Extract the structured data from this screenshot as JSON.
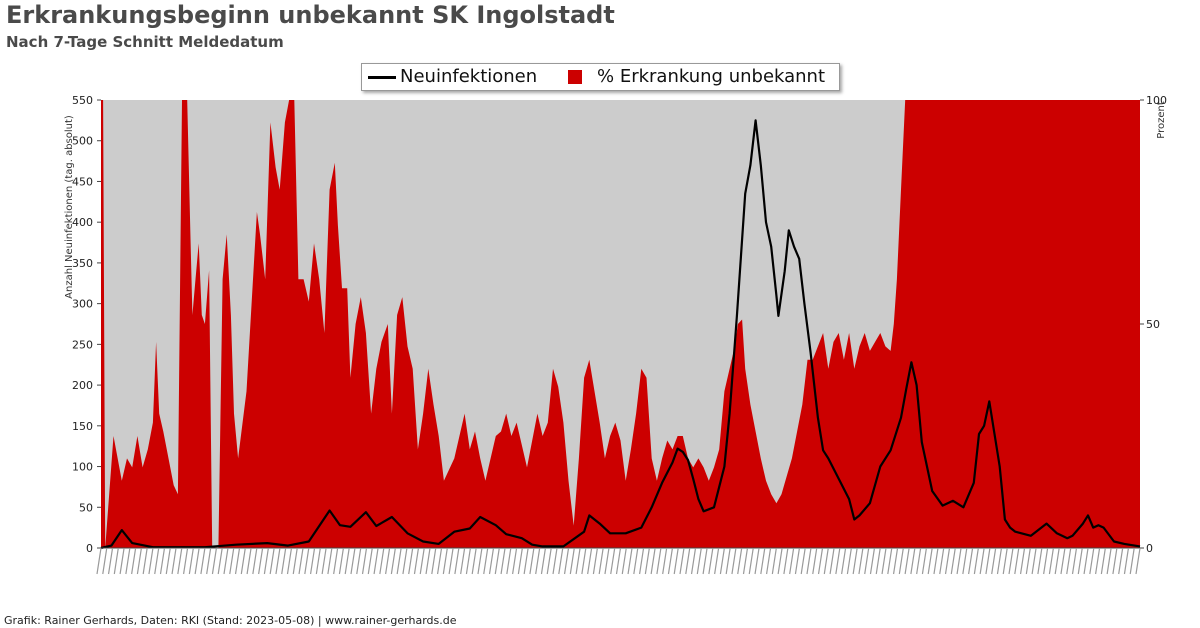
{
  "title": "Erkrankungsbeginn unbekannt SK Ingolstadt",
  "subtitle": "Nach 7-Tage Schnitt Meldedatum",
  "footer": "Grafik: Rainer Gerhards, Daten: RKI (Stand: 2023-05-08) | www.rainer-gerhards.de",
  "colors": {
    "area": "#cc0000",
    "line": "#000000",
    "plot_bg": "#cccccc"
  },
  "chart_data": {
    "type": "line+area",
    "legend": [
      "Neuinfektionen",
      "% Erkrankung unbekannt"
    ],
    "legend_position": "top-center",
    "ylabel_left": "Anzahl Neuinfektionen (tag. absolut)",
    "ylabel_right": "Prozent",
    "ylim_left": [
      0,
      550
    ],
    "ylim_right": [
      0,
      100
    ],
    "yticks_left": [
      0,
      50,
      100,
      150,
      200,
      250,
      300,
      350,
      400,
      450,
      500,
      550
    ],
    "yticks_right": [
      0,
      50,
      100
    ],
    "x_range": [
      "2020-03",
      "2023-05-06"
    ],
    "x_tick_labels_note": "daily date labels, overlapping and illegible",
    "series": [
      {
        "name": "Neuinfektionen",
        "axis": "left",
        "points": [
          [
            0,
            0
          ],
          [
            0.01,
            3
          ],
          [
            0.02,
            22
          ],
          [
            0.03,
            6
          ],
          [
            0.05,
            1
          ],
          [
            0.1,
            1
          ],
          [
            0.13,
            4
          ],
          [
            0.16,
            6
          ],
          [
            0.18,
            3
          ],
          [
            0.2,
            8
          ],
          [
            0.21,
            27
          ],
          [
            0.22,
            46
          ],
          [
            0.23,
            28
          ],
          [
            0.24,
            26
          ],
          [
            0.255,
            44
          ],
          [
            0.265,
            27
          ],
          [
            0.28,
            38
          ],
          [
            0.295,
            18
          ],
          [
            0.31,
            8
          ],
          [
            0.325,
            5
          ],
          [
            0.34,
            20
          ],
          [
            0.355,
            24
          ],
          [
            0.365,
            38
          ],
          [
            0.38,
            28
          ],
          [
            0.39,
            17
          ],
          [
            0.405,
            12
          ],
          [
            0.415,
            4
          ],
          [
            0.425,
            2
          ],
          [
            0.445,
            2
          ],
          [
            0.465,
            20
          ],
          [
            0.47,
            40
          ],
          [
            0.48,
            30
          ],
          [
            0.49,
            18
          ],
          [
            0.505,
            18
          ],
          [
            0.52,
            25
          ],
          [
            0.53,
            50
          ],
          [
            0.54,
            80
          ],
          [
            0.55,
            105
          ],
          [
            0.555,
            122
          ],
          [
            0.56,
            118
          ],
          [
            0.565,
            108
          ],
          [
            0.57,
            85
          ],
          [
            0.575,
            60
          ],
          [
            0.58,
            45
          ],
          [
            0.59,
            50
          ],
          [
            0.6,
            100
          ],
          [
            0.605,
            165
          ],
          [
            0.612,
            285
          ],
          [
            0.62,
            435
          ],
          [
            0.625,
            470
          ],
          [
            0.63,
            525
          ],
          [
            0.635,
            470
          ],
          [
            0.64,
            400
          ],
          [
            0.645,
            370
          ],
          [
            0.65,
            310
          ],
          [
            0.652,
            285
          ],
          [
            0.658,
            340
          ],
          [
            0.662,
            390
          ],
          [
            0.667,
            370
          ],
          [
            0.672,
            355
          ],
          [
            0.677,
            300
          ],
          [
            0.683,
            240
          ],
          [
            0.69,
            160
          ],
          [
            0.695,
            120
          ],
          [
            0.7,
            110
          ],
          [
            0.71,
            85
          ],
          [
            0.72,
            60
          ],
          [
            0.725,
            35
          ],
          [
            0.73,
            40
          ],
          [
            0.74,
            55
          ],
          [
            0.75,
            100
          ],
          [
            0.76,
            120
          ],
          [
            0.77,
            160
          ],
          [
            0.775,
            195
          ],
          [
            0.78,
            228
          ],
          [
            0.785,
            200
          ],
          [
            0.79,
            130
          ],
          [
            0.8,
            70
          ],
          [
            0.81,
            52
          ],
          [
            0.82,
            58
          ],
          [
            0.83,
            50
          ],
          [
            0.84,
            80
          ],
          [
            0.845,
            140
          ],
          [
            0.85,
            150
          ],
          [
            0.855,
            180
          ],
          [
            0.86,
            140
          ],
          [
            0.865,
            100
          ],
          [
            0.87,
            35
          ],
          [
            0.875,
            25
          ],
          [
            0.88,
            20
          ],
          [
            0.895,
            15
          ],
          [
            0.91,
            30
          ],
          [
            0.92,
            18
          ],
          [
            0.93,
            12
          ],
          [
            0.935,
            15
          ],
          [
            0.945,
            30
          ],
          [
            0.95,
            40
          ],
          [
            0.955,
            25
          ],
          [
            0.96,
            28
          ],
          [
            0.965,
            25
          ],
          [
            0.975,
            8
          ],
          [
            0.985,
            5
          ],
          [
            1,
            2
          ]
        ]
      },
      {
        "name": "% Erkrankung unbekannt",
        "axis": "right",
        "points": [
          [
            0,
            100
          ],
          [
            0.002,
            100
          ],
          [
            0.004,
            0
          ],
          [
            0.012,
            25
          ],
          [
            0.02,
            15
          ],
          [
            0.025,
            20
          ],
          [
            0.03,
            18
          ],
          [
            0.035,
            25
          ],
          [
            0.04,
            18
          ],
          [
            0.045,
            22
          ],
          [
            0.05,
            28
          ],
          [
            0.053,
            46
          ],
          [
            0.056,
            30
          ],
          [
            0.06,
            26
          ],
          [
            0.065,
            20
          ],
          [
            0.07,
            14
          ],
          [
            0.074,
            12
          ],
          [
            0.078,
            100
          ],
          [
            0.083,
            100
          ],
          [
            0.086,
            70
          ],
          [
            0.088,
            52
          ],
          [
            0.091,
            60
          ],
          [
            0.094,
            68
          ],
          [
            0.097,
            52
          ],
          [
            0.1,
            50
          ],
          [
            0.104,
            62
          ],
          [
            0.107,
            0
          ],
          [
            0.113,
            0
          ],
          [
            0.117,
            60
          ],
          [
            0.121,
            70
          ],
          [
            0.125,
            52
          ],
          [
            0.128,
            30
          ],
          [
            0.132,
            20
          ],
          [
            0.14,
            35
          ],
          [
            0.145,
            55
          ],
          [
            0.15,
            75
          ],
          [
            0.153,
            70
          ],
          [
            0.158,
            60
          ],
          [
            0.163,
            95
          ],
          [
            0.168,
            85
          ],
          [
            0.172,
            80
          ],
          [
            0.177,
            95
          ],
          [
            0.181,
            100
          ],
          [
            0.186,
            100
          ],
          [
            0.19,
            60
          ],
          [
            0.195,
            60
          ],
          [
            0.2,
            55
          ],
          [
            0.205,
            68
          ],
          [
            0.21,
            60
          ],
          [
            0.215,
            48
          ],
          [
            0.22,
            80
          ],
          [
            0.225,
            86
          ],
          [
            0.228,
            72
          ],
          [
            0.232,
            58
          ],
          [
            0.237,
            58
          ],
          [
            0.24,
            38
          ],
          [
            0.245,
            50
          ],
          [
            0.25,
            56
          ],
          [
            0.255,
            48
          ],
          [
            0.26,
            30
          ],
          [
            0.265,
            40
          ],
          [
            0.27,
            46
          ],
          [
            0.276,
            50
          ],
          [
            0.28,
            30
          ],
          [
            0.285,
            52
          ],
          [
            0.29,
            56
          ],
          [
            0.295,
            45
          ],
          [
            0.3,
            40
          ],
          [
            0.305,
            22
          ],
          [
            0.31,
            30
          ],
          [
            0.315,
            40
          ],
          [
            0.32,
            32
          ],
          [
            0.325,
            25
          ],
          [
            0.33,
            15
          ],
          [
            0.34,
            20
          ],
          [
            0.35,
            30
          ],
          [
            0.355,
            22
          ],
          [
            0.36,
            26
          ],
          [
            0.365,
            20
          ],
          [
            0.37,
            15
          ],
          [
            0.38,
            25
          ],
          [
            0.385,
            26
          ],
          [
            0.39,
            30
          ],
          [
            0.395,
            25
          ],
          [
            0.4,
            28
          ],
          [
            0.41,
            18
          ],
          [
            0.42,
            30
          ],
          [
            0.425,
            25
          ],
          [
            0.43,
            28
          ],
          [
            0.435,
            40
          ],
          [
            0.44,
            36
          ],
          [
            0.445,
            28
          ],
          [
            0.45,
            15
          ],
          [
            0.455,
            5
          ],
          [
            0.46,
            20
          ],
          [
            0.465,
            38
          ],
          [
            0.47,
            42
          ],
          [
            0.475,
            35
          ],
          [
            0.48,
            28
          ],
          [
            0.485,
            20
          ],
          [
            0.49,
            25
          ],
          [
            0.495,
            28
          ],
          [
            0.5,
            24
          ],
          [
            0.505,
            15
          ],
          [
            0.51,
            22
          ],
          [
            0.515,
            30
          ],
          [
            0.52,
            40
          ],
          [
            0.525,
            38
          ],
          [
            0.53,
            20
          ],
          [
            0.535,
            15
          ],
          [
            0.54,
            20
          ],
          [
            0.545,
            24
          ],
          [
            0.55,
            22
          ],
          [
            0.555,
            25
          ],
          [
            0.56,
            25
          ],
          [
            0.565,
            20
          ],
          [
            0.57,
            18
          ],
          [
            0.575,
            20
          ],
          [
            0.58,
            18
          ],
          [
            0.585,
            15
          ],
          [
            0.59,
            18
          ],
          [
            0.595,
            22
          ],
          [
            0.6,
            35
          ],
          [
            0.605,
            40
          ],
          [
            0.61,
            45
          ],
          [
            0.613,
            50
          ],
          [
            0.617,
            51
          ],
          [
            0.62,
            40
          ],
          [
            0.625,
            32
          ],
          [
            0.63,
            26
          ],
          [
            0.635,
            20
          ],
          [
            0.64,
            15
          ],
          [
            0.645,
            12
          ],
          [
            0.65,
            10
          ],
          [
            0.655,
            12
          ],
          [
            0.66,
            16
          ],
          [
            0.665,
            20
          ],
          [
            0.67,
            26
          ],
          [
            0.675,
            32
          ],
          [
            0.68,
            42
          ],
          [
            0.685,
            42
          ],
          [
            0.69,
            45
          ],
          [
            0.695,
            48
          ],
          [
            0.7,
            40
          ],
          [
            0.705,
            46
          ],
          [
            0.71,
            48
          ],
          [
            0.715,
            42
          ],
          [
            0.72,
            48
          ],
          [
            0.725,
            40
          ],
          [
            0.73,
            45
          ],
          [
            0.735,
            48
          ],
          [
            0.74,
            44
          ],
          [
            0.745,
            46
          ],
          [
            0.75,
            48
          ],
          [
            0.755,
            45
          ],
          [
            0.76,
            44
          ],
          [
            0.763,
            50
          ],
          [
            0.766,
            60
          ],
          [
            0.77,
            80
          ],
          [
            0.774,
            100
          ],
          [
            0.998,
            100
          ],
          [
            1,
            100
          ]
        ]
      }
    ]
  }
}
